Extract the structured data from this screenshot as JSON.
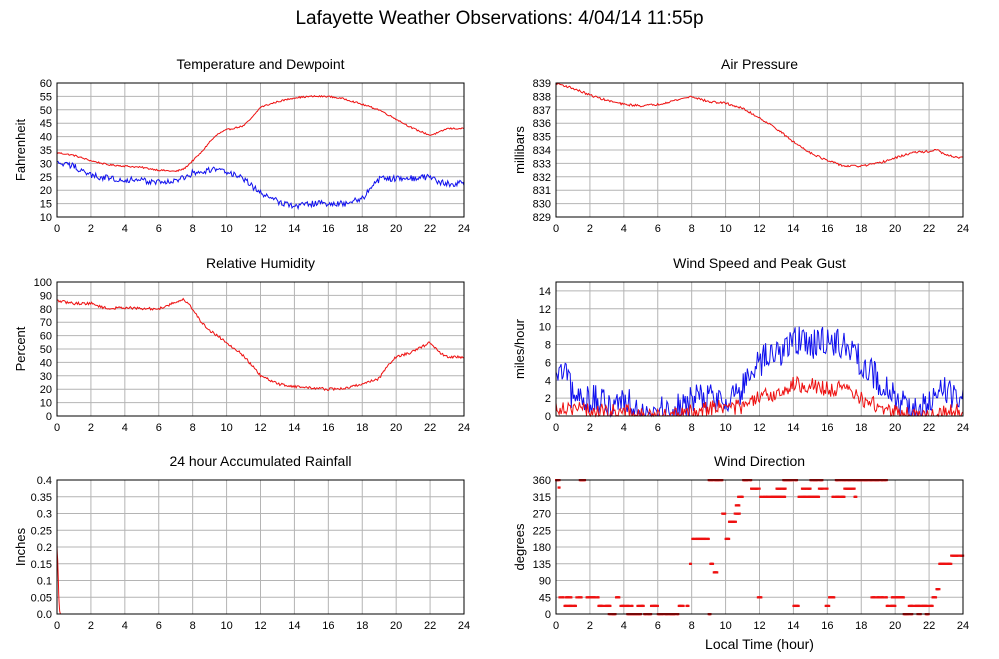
{
  "page": {
    "title": "Lafayette Weather Observations: 4/04/14 11:55p",
    "x_axis_label": "Local Time (hour)"
  },
  "colors": {
    "red": "#ee1111",
    "blue": "#1111ee",
    "grid": "#b4b4b4"
  },
  "chart_data": [
    {
      "id": "temp",
      "type": "line",
      "title": "Temperature and Dewpoint",
      "xlabel": "",
      "ylabel": "Fahrenheit",
      "xlim": [
        0,
        24
      ],
      "ylim": [
        10,
        60
      ],
      "xticks": [
        0,
        2,
        4,
        6,
        8,
        10,
        12,
        14,
        16,
        18,
        20,
        22,
        24
      ],
      "yticks": [
        10,
        15,
        20,
        25,
        30,
        35,
        40,
        45,
        50,
        55,
        60
      ],
      "grid": true,
      "series": [
        {
          "color": "#ee1111",
          "noise": 0.3,
          "x": [
            0,
            1,
            2,
            3,
            4,
            5,
            6,
            7,
            7.5,
            8,
            8.5,
            9,
            9.5,
            10,
            11,
            11.5,
            12,
            13,
            14,
            15,
            16,
            17,
            18,
            19,
            20,
            21,
            22,
            22.5,
            23,
            24
          ],
          "y": [
            34,
            33,
            31,
            29.5,
            29,
            28.5,
            27.5,
            27,
            28,
            31,
            34,
            38,
            41,
            42.5,
            44,
            47,
            51,
            53,
            54.5,
            55,
            55,
            54,
            52,
            50,
            46.5,
            43,
            40.5,
            41.5,
            43,
            43
          ]
        },
        {
          "color": "#1111ee",
          "noise": 1.2,
          "x": [
            0,
            1,
            2,
            3,
            4,
            5,
            6,
            7,
            7.5,
            8,
            9,
            9.5,
            10,
            11,
            12,
            13,
            14,
            15,
            16,
            17,
            18,
            19,
            20,
            21,
            22,
            22.5,
            23,
            24
          ],
          "y": [
            30,
            29,
            25.5,
            24.5,
            24,
            23.5,
            23,
            23.5,
            24.5,
            26.5,
            27.5,
            28,
            27,
            24,
            19,
            16,
            14,
            15,
            15,
            15,
            17,
            24,
            24.5,
            24.5,
            25,
            23,
            22.5,
            22.5
          ]
        }
      ]
    },
    {
      "id": "pressure",
      "type": "line",
      "title": "Air Pressure",
      "xlabel": "",
      "ylabel": "millibars",
      "xlim": [
        0,
        24
      ],
      "ylim": [
        829,
        839
      ],
      "xticks": [
        0,
        2,
        4,
        6,
        8,
        10,
        12,
        14,
        16,
        18,
        20,
        22,
        24
      ],
      "yticks": [
        829,
        830,
        831,
        832,
        833,
        834,
        835,
        836,
        837,
        838,
        839
      ],
      "grid": true,
      "series": [
        {
          "color": "#ee1111",
          "noise": 0.08,
          "x": [
            0,
            1,
            2,
            3,
            4,
            5,
            6,
            7,
            8,
            9,
            10,
            11,
            12,
            13,
            14,
            15,
            16,
            17,
            18,
            19,
            20,
            21,
            22,
            22.5,
            23,
            24
          ],
          "y": [
            839,
            838.6,
            838.1,
            837.7,
            837.4,
            837.3,
            837.4,
            837.7,
            838,
            837.6,
            837.5,
            837.1,
            836.4,
            835.6,
            834.6,
            833.8,
            833.2,
            832.8,
            832.8,
            833,
            833.4,
            833.8,
            833.9,
            834,
            833.6,
            833.4
          ]
        }
      ]
    },
    {
      "id": "humidity",
      "type": "line",
      "title": "Relative Humidity",
      "xlabel": "",
      "ylabel": "Percent",
      "xlim": [
        0,
        24
      ],
      "ylim": [
        0,
        100
      ],
      "xticks": [
        0,
        2,
        4,
        6,
        8,
        10,
        12,
        14,
        16,
        18,
        20,
        22,
        24
      ],
      "yticks": [
        0,
        10,
        20,
        30,
        40,
        50,
        60,
        70,
        80,
        90,
        100
      ],
      "grid": true,
      "series": [
        {
          "color": "#ee1111",
          "noise": 1.0,
          "x": [
            0,
            1,
            2,
            3,
            4,
            5,
            6,
            7,
            7.5,
            8,
            8.5,
            9,
            10,
            11,
            12,
            13,
            14,
            15,
            16,
            17,
            18,
            19,
            19.5,
            20,
            21,
            22,
            22.5,
            23,
            24
          ],
          "y": [
            86,
            84,
            84,
            80,
            81,
            80,
            80,
            85,
            87,
            80,
            70,
            64,
            55,
            45,
            30,
            24,
            22,
            21,
            20,
            20.5,
            24,
            28,
            38,
            44,
            48,
            55,
            48,
            44,
            44
          ]
        }
      ]
    },
    {
      "id": "wind",
      "type": "line",
      "title": "Wind Speed and Peak Gust",
      "xlabel": "",
      "ylabel": "miles/hour",
      "xlim": [
        0,
        24
      ],
      "ylim": [
        0,
        15
      ],
      "xticks": [
        0,
        2,
        4,
        6,
        8,
        10,
        12,
        14,
        16,
        18,
        20,
        22,
        24
      ],
      "yticks": [
        0,
        2,
        4,
        6,
        8,
        10,
        12,
        14
      ],
      "grid": true,
      "series": [
        {
          "color": "#1111ee",
          "noise": 1.8,
          "clampZero": true,
          "x": [
            0,
            0.5,
            1,
            2,
            3,
            4,
            5,
            6,
            7,
            7.5,
            8,
            9,
            10,
            11,
            11.5,
            12,
            13,
            14,
            15,
            16,
            17,
            18,
            19,
            20,
            21,
            22,
            23,
            24
          ],
          "y": [
            4,
            5,
            2,
            2,
            1,
            2,
            1,
            0.5,
            0.5,
            1,
            2,
            2,
            2,
            3,
            4,
            6,
            7,
            8.5,
            8,
            8.5,
            8,
            6,
            4,
            2,
            0.5,
            1,
            3,
            2
          ]
        },
        {
          "color": "#ee1111",
          "noise": 0.9,
          "clampZero": true,
          "x": [
            0,
            1,
            2,
            3,
            4,
            5,
            6,
            7,
            8,
            9,
            10,
            11,
            12,
            13,
            14,
            15,
            16,
            17,
            18,
            19,
            20,
            21,
            22,
            23,
            24
          ],
          "y": [
            1,
            1,
            0.5,
            0.5,
            0.5,
            0,
            0,
            0,
            0.5,
            1,
            1,
            1,
            2,
            2.5,
            3.5,
            3.5,
            3,
            3,
            2,
            1,
            0.5,
            0,
            0,
            0.5,
            0.5
          ]
        }
      ]
    },
    {
      "id": "rain",
      "type": "line",
      "title": "24 hour Accumulated Rainfall",
      "xlabel": "",
      "ylabel": "Inches",
      "xlim": [
        0,
        24
      ],
      "ylim": [
        0,
        0.4
      ],
      "xticks": [
        0,
        2,
        4,
        6,
        8,
        10,
        12,
        14,
        16,
        18,
        20,
        22,
        24
      ],
      "yticks": [
        0.0,
        0.05,
        0.1,
        0.15,
        0.2,
        0.25,
        0.3,
        0.35,
        0.4
      ],
      "ytick_labels": [
        "0.0",
        "0.05",
        "0.1",
        "0.15",
        "0.2",
        "0.25",
        "0.3",
        "0.35",
        "0.4"
      ],
      "grid": true,
      "series": [
        {
          "color": "#ee1111",
          "noise": 0,
          "x": [
            0,
            0.05,
            0.1,
            0.15,
            0.2,
            1,
            24
          ],
          "y": [
            0.2,
            0.15,
            0.06,
            0.01,
            0.0,
            0.0,
            0.0
          ]
        }
      ]
    },
    {
      "id": "direction",
      "type": "scatter",
      "title": "Wind Direction",
      "xlabel": "Local Time (hour)",
      "ylabel": "degrees",
      "xlim": [
        0,
        24
      ],
      "ylim": [
        0,
        360
      ],
      "xticks": [
        0,
        2,
        4,
        6,
        8,
        10,
        12,
        14,
        16,
        18,
        20,
        22,
        24
      ],
      "yticks": [
        0,
        45,
        90,
        135,
        180,
        225,
        270,
        315,
        360
      ],
      "grid": true,
      "series": [
        {
          "color": "#ee1111",
          "segments": [
            [
              0.0,
              0.2,
              360
            ],
            [
              0.15,
              0.2,
              340
            ],
            [
              0.2,
              0.9,
              45
            ],
            [
              0.5,
              1.2,
              22
            ],
            [
              1.2,
              1.5,
              45
            ],
            [
              1.4,
              1.7,
              360
            ],
            [
              1.8,
              2.5,
              45
            ],
            [
              2.5,
              3.2,
              22
            ],
            [
              3.0,
              3.5,
              0
            ],
            [
              3.5,
              3.8,
              45
            ],
            [
              3.8,
              4.5,
              22
            ],
            [
              4.2,
              5.0,
              0
            ],
            [
              4.8,
              5.2,
              22
            ],
            [
              5.2,
              5.6,
              0
            ],
            [
              5.6,
              6.0,
              22
            ],
            [
              6.0,
              7.2,
              0
            ],
            [
              7.2,
              7.8,
              22
            ],
            [
              7.9,
              7.95,
              135
            ],
            [
              8.0,
              9.0,
              202
            ],
            [
              9.0,
              9.1,
              0
            ],
            [
              9.1,
              9.25,
              135
            ],
            [
              9.3,
              9.5,
              112
            ],
            [
              9.0,
              9.8,
              360
            ],
            [
              9.8,
              10.0,
              270
            ],
            [
              10.0,
              10.2,
              202
            ],
            [
              10.2,
              10.6,
              248
            ],
            [
              10.5,
              10.9,
              270
            ],
            [
              10.6,
              10.8,
              292
            ],
            [
              10.7,
              11.0,
              315
            ],
            [
              11.0,
              11.5,
              360
            ],
            [
              11.5,
              12.0,
              337
            ],
            [
              11.9,
              12.1,
              45
            ],
            [
              12.0,
              12.4,
              315
            ],
            [
              12.4,
              13.5,
              315
            ],
            [
              13.0,
              13.6,
              337
            ],
            [
              13.4,
              14.2,
              360
            ],
            [
              14.0,
              14.3,
              22
            ],
            [
              14.3,
              15.5,
              315
            ],
            [
              14.5,
              15.0,
              337
            ],
            [
              15.0,
              15.7,
              360
            ],
            [
              15.5,
              16.0,
              337
            ],
            [
              15.9,
              16.1,
              22
            ],
            [
              16.1,
              16.4,
              45
            ],
            [
              16.3,
              17.0,
              315
            ],
            [
              16.5,
              17.5,
              360
            ],
            [
              17.0,
              17.6,
              337
            ],
            [
              17.6,
              17.7,
              315
            ],
            [
              17.5,
              19.0,
              360
            ],
            [
              18.6,
              19.5,
              45
            ],
            [
              19.0,
              19.5,
              360
            ],
            [
              19.5,
              20.0,
              22
            ],
            [
              19.8,
              20.5,
              45
            ],
            [
              20.5,
              21.0,
              0
            ],
            [
              20.8,
              21.4,
              22
            ],
            [
              21.2,
              21.5,
              0
            ],
            [
              21.4,
              22.0,
              22
            ],
            [
              21.8,
              22.0,
              0
            ],
            [
              22.0,
              22.2,
              22
            ],
            [
              22.2,
              22.4,
              45
            ],
            [
              22.4,
              22.6,
              67
            ],
            [
              22.6,
              23.3,
              135
            ],
            [
              23.3,
              24.0,
              157
            ]
          ]
        }
      ]
    }
  ]
}
